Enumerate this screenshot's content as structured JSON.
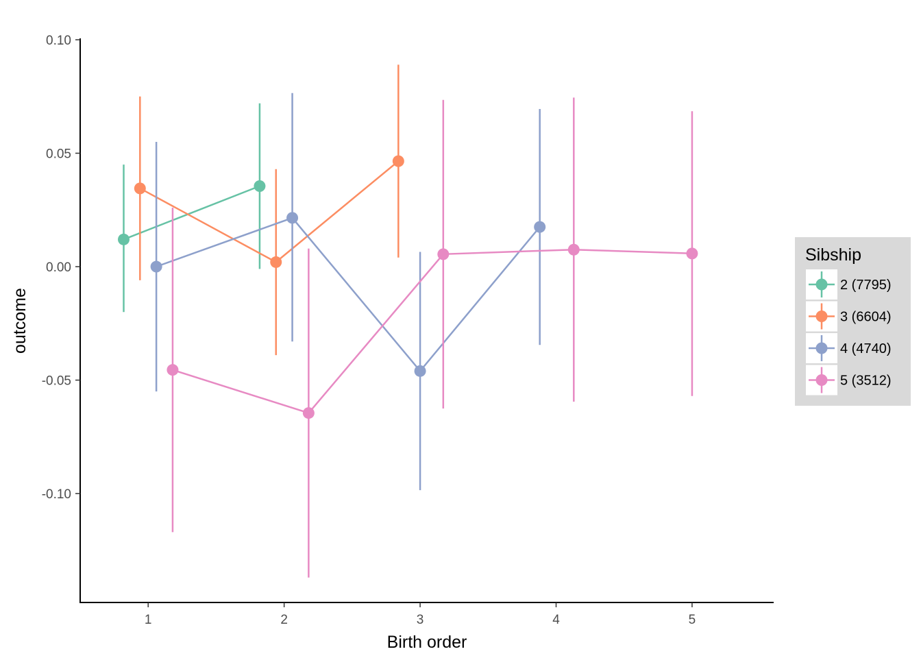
{
  "chart_data": {
    "type": "line",
    "xlabel": "Birth order",
    "ylabel": "outcome",
    "xlim": [
      0.5,
      5.6
    ],
    "ylim": [
      -0.148,
      0.1
    ],
    "x_ticks": [
      1,
      2,
      3,
      4,
      5
    ],
    "x_tick_labels": [
      "1",
      "2",
      "3",
      "4",
      "5"
    ],
    "y_ticks": [
      0.1,
      0.05,
      0.0,
      -0.05,
      -0.1
    ],
    "y_tick_labels": [
      "0.10",
      "0.05",
      "0.00",
      "-0.05",
      "-0.10"
    ],
    "grid": false,
    "legend": {
      "title": "Sibship",
      "position": "right",
      "entries": [
        "2 (7795)",
        "3 (6604)",
        "4 (4740)",
        "5 (3512)"
      ]
    },
    "series": [
      {
        "name": "2 (7795)",
        "color": "#66c2a5",
        "points": [
          {
            "x": 0.82,
            "y": 0.012,
            "low": -0.02,
            "high": 0.045
          },
          {
            "x": 1.82,
            "y": 0.0355,
            "low": -0.001,
            "high": 0.072
          }
        ]
      },
      {
        "name": "3 (6604)",
        "color": "#fc8d62",
        "points": [
          {
            "x": 0.94,
            "y": 0.0345,
            "low": -0.006,
            "high": 0.075
          },
          {
            "x": 1.94,
            "y": 0.002,
            "low": -0.039,
            "high": 0.043
          },
          {
            "x": 2.84,
            "y": 0.0465,
            "low": 0.004,
            "high": 0.089
          }
        ]
      },
      {
        "name": "4 (4740)",
        "color": "#8da0cb",
        "points": [
          {
            "x": 1.06,
            "y": 0.0,
            "low": -0.055,
            "high": 0.055
          },
          {
            "x": 2.06,
            "y": 0.0215,
            "low": -0.033,
            "high": 0.0765
          },
          {
            "x": 3.0,
            "y": -0.046,
            "low": -0.0985,
            "high": 0.0065
          },
          {
            "x": 3.88,
            "y": 0.0175,
            "low": -0.0345,
            "high": 0.0695
          }
        ]
      },
      {
        "name": "5 (3512)",
        "color": "#e78ac3",
        "points": [
          {
            "x": 1.18,
            "y": -0.0455,
            "low": -0.117,
            "high": 0.026
          },
          {
            "x": 2.18,
            "y": -0.0645,
            "low": -0.137,
            "high": 0.008
          },
          {
            "x": 3.17,
            "y": 0.0055,
            "low": -0.0625,
            "high": 0.0735
          },
          {
            "x": 4.13,
            "y": 0.0075,
            "low": -0.0595,
            "high": 0.0745
          },
          {
            "x": 5.0,
            "y": 0.0058,
            "low": -0.057,
            "high": 0.0685
          }
        ]
      }
    ]
  }
}
